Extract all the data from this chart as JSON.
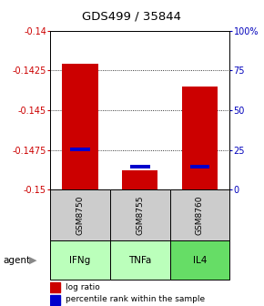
{
  "title": "GDS499 / 35844",
  "categories": [
    "GSM8750",
    "GSM8755",
    "GSM8760"
  ],
  "agents": [
    "IFNg",
    "TNFa",
    "IL4"
  ],
  "y_min": -0.15,
  "y_max": -0.14,
  "y_ticks": [
    -0.15,
    -0.1475,
    -0.145,
    -0.1425,
    -0.14
  ],
  "y_tick_labels": [
    "-0.15",
    "-0.1475",
    "-0.145",
    "-0.1425",
    "-0.14"
  ],
  "right_y_ticks_pct": [
    0,
    25,
    50,
    75,
    100
  ],
  "right_y_labels": [
    "0",
    "25",
    "50",
    "75",
    "100%"
  ],
  "bar_base": -0.15,
  "log_ratio_values": [
    -0.1421,
    -0.1488,
    -0.1435
  ],
  "percentile_values": [
    -0.14745,
    -0.14855,
    -0.14855
  ],
  "bar_color": "#cc0000",
  "percentile_color": "#0000cc",
  "agent_colors": [
    "#bbffbb",
    "#bbffbb",
    "#66dd66"
  ],
  "sample_bg_color": "#cccccc",
  "bar_width": 0.6,
  "legend_red_label": "log ratio",
  "legend_blue_label": "percentile rank within the sample",
  "left_axis_color": "#cc0000",
  "right_axis_color": "#0000bb",
  "title_fontsize": 9.5
}
